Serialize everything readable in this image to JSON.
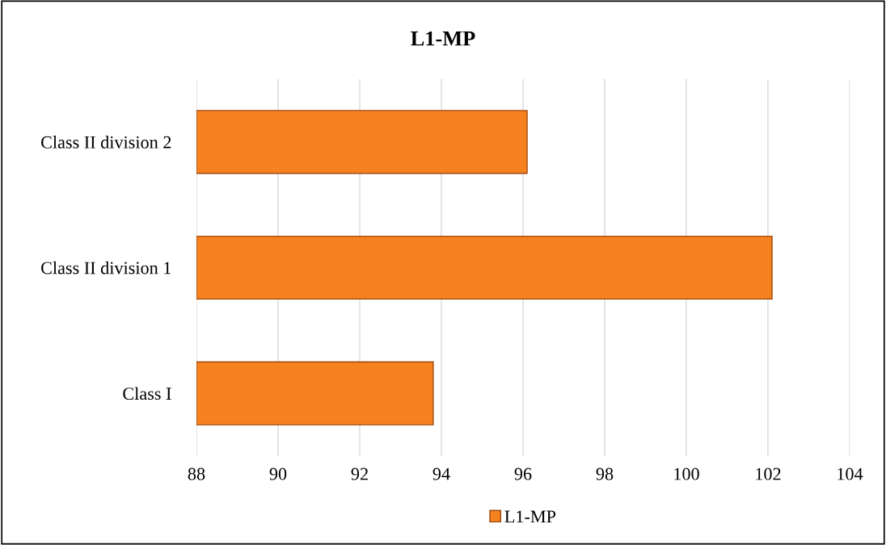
{
  "chart_data": {
    "type": "bar",
    "orientation": "horizontal",
    "title": "L1-MP",
    "categories": [
      "Class II division 2",
      "Class II division 1",
      "Class I"
    ],
    "series": [
      {
        "name": "L1-MP",
        "color": "#f5821f",
        "values": [
          96.1,
          102.1,
          93.8
        ]
      }
    ],
    "xlim": [
      88,
      104
    ],
    "xticks": [
      88,
      90,
      92,
      94,
      96,
      98,
      100,
      102,
      104
    ],
    "grid": "x",
    "legend": "bottom"
  }
}
